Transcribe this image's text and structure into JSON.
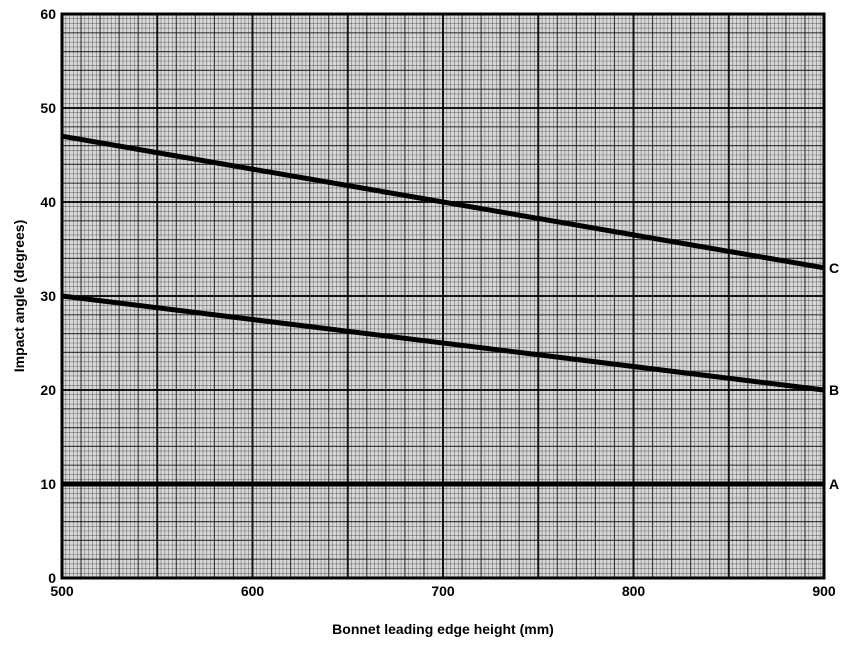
{
  "chart_data": {
    "type": "line",
    "title": "",
    "xlabel": "Bonnet leading edge height (mm)",
    "ylabel": "Impact angle (degrees)",
    "xlim": [
      500,
      900
    ],
    "ylim": [
      0,
      60
    ],
    "x_ticks": [
      500,
      600,
      700,
      800,
      900
    ],
    "y_ticks": [
      0,
      10,
      20,
      30,
      40,
      50,
      60
    ],
    "grid": true,
    "legend": "none",
    "series": [
      {
        "name": "A",
        "x": [
          500,
          900
        ],
        "y": [
          10,
          10
        ]
      },
      {
        "name": "B",
        "x": [
          500,
          900
        ],
        "y": [
          30,
          20
        ]
      },
      {
        "name": "C",
        "x": [
          500,
          900
        ],
        "y": [
          47,
          33
        ]
      }
    ]
  }
}
